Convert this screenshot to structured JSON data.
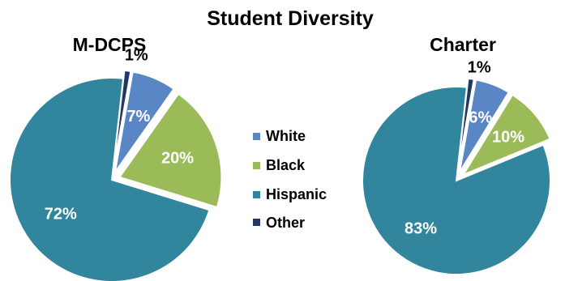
{
  "chart_data": {
    "type": "pie",
    "title": "Student Diversity",
    "legend": {
      "position": "center",
      "items": [
        {
          "label": "White",
          "color": "#5B86C5"
        },
        {
          "label": "Black",
          "color": "#9BBB59"
        },
        {
          "label": "Hispanic",
          "color": "#31859C"
        },
        {
          "label": "Other",
          "color": "#1F3864"
        }
      ]
    },
    "charts": [
      {
        "title": "M-DCPS",
        "values": [
          7,
          20,
          72,
          1
        ],
        "labels": [
          "7%",
          "20%",
          "72%",
          "1%"
        ]
      },
      {
        "title": "Charter",
        "values": [
          6,
          10,
          83,
          1
        ],
        "labels": [
          "6%",
          "10%",
          "83%",
          "1%"
        ]
      }
    ]
  }
}
